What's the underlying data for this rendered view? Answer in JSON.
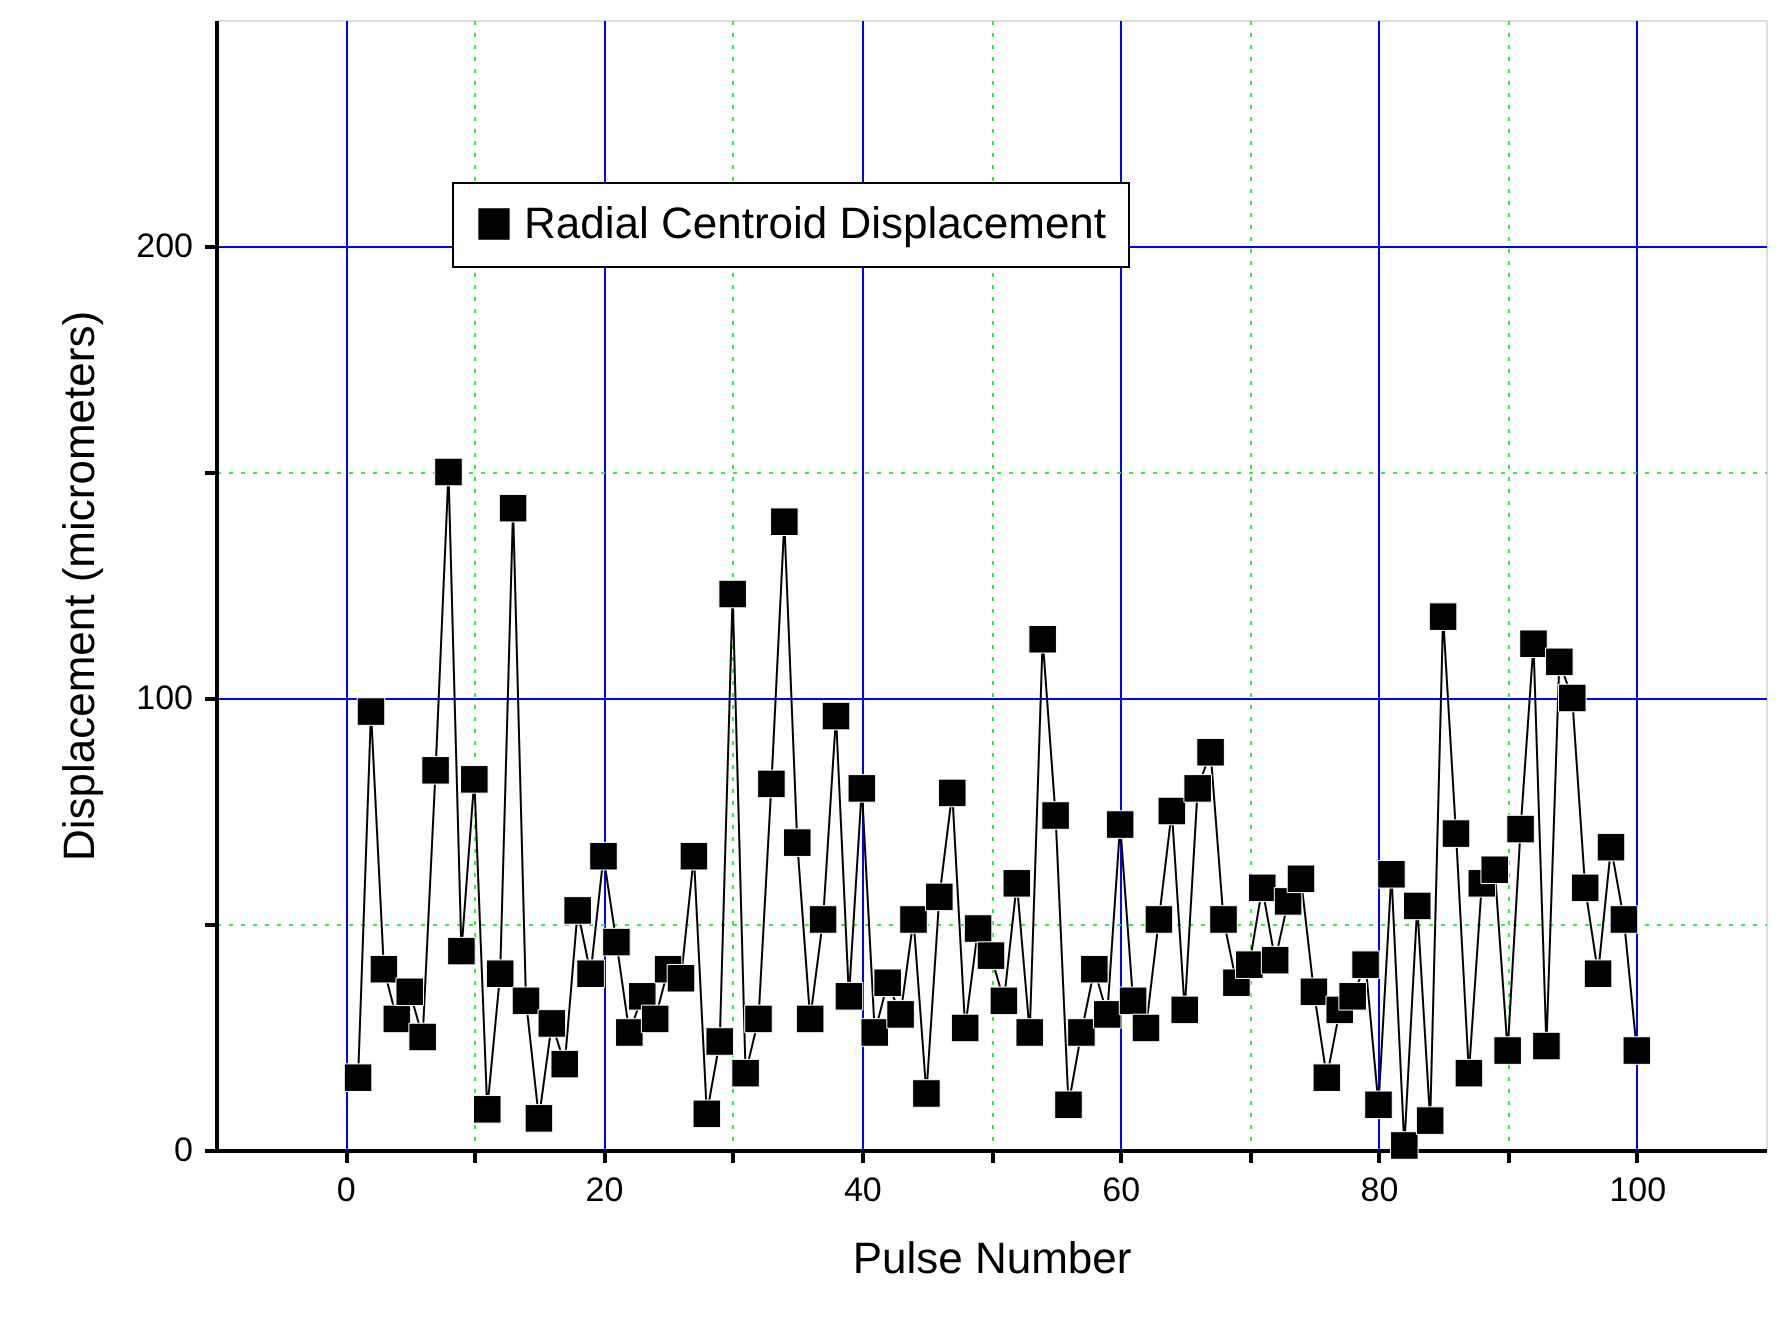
{
  "chart_data": {
    "type": "line",
    "xlabel": "Pulse Number",
    "ylabel": "Displacement (micrometers)",
    "x": [
      1,
      2,
      3,
      4,
      5,
      6,
      7,
      8,
      9,
      10,
      11,
      12,
      13,
      14,
      15,
      16,
      17,
      18,
      19,
      20,
      21,
      22,
      23,
      24,
      25,
      26,
      27,
      28,
      29,
      30,
      31,
      32,
      33,
      34,
      35,
      36,
      37,
      38,
      39,
      40,
      41,
      42,
      43,
      44,
      45,
      46,
      47,
      48,
      49,
      50,
      51,
      52,
      53,
      54,
      55,
      56,
      57,
      58,
      59,
      60,
      61,
      62,
      63,
      64,
      65,
      66,
      67,
      68,
      69,
      70,
      71,
      72,
      73,
      74,
      75,
      76,
      77,
      78,
      79,
      80,
      81,
      82,
      83,
      84,
      85,
      86,
      87,
      88,
      89,
      90,
      91,
      92,
      93,
      94,
      95,
      96,
      97,
      98,
      99,
      100
    ],
    "series": [
      {
        "name": "Radial Centroid Displacement",
        "color": "#000000",
        "values": [
          16,
          97,
          40,
          29,
          35,
          25,
          84,
          150,
          44,
          82,
          9,
          39,
          142,
          33,
          7,
          28,
          19,
          53,
          39,
          65,
          46,
          26,
          34,
          29,
          40,
          38,
          65,
          8,
          24,
          123,
          17,
          29,
          81,
          139,
          68,
          29,
          51,
          96,
          34,
          80,
          26,
          37,
          30,
          51,
          12.5,
          56,
          79,
          27,
          49,
          43,
          33,
          59,
          26,
          113,
          74,
          10,
          26,
          40,
          30,
          72,
          33,
          27,
          51,
          75,
          31,
          80,
          88,
          51,
          37,
          41,
          58,
          42,
          55,
          60,
          35,
          16,
          31,
          34,
          41,
          10,
          61,
          1,
          54,
          6.5,
          118,
          70,
          17,
          59,
          62,
          22,
          71,
          112,
          23,
          108,
          100,
          58,
          39,
          67,
          51,
          22
        ]
      }
    ],
    "xlim": [
      -10,
      110
    ],
    "ylim": [
      0,
      250
    ],
    "xticks": [
      0,
      {
        "value": 10,
        "label": null
      },
      20,
      {
        "value": 30,
        "label": null
      },
      40,
      {
        "value": 50,
        "label": null
      },
      60,
      {
        "value": 70,
        "label": null
      },
      80,
      {
        "value": 90,
        "label": null
      },
      100
    ],
    "yticks": [
      0,
      {
        "value": 50,
        "label": null
      },
      100,
      {
        "value": 150,
        "label": null
      },
      200
    ],
    "grid": true,
    "legend": "top",
    "marker": "square",
    "line_style": "solid"
  }
}
